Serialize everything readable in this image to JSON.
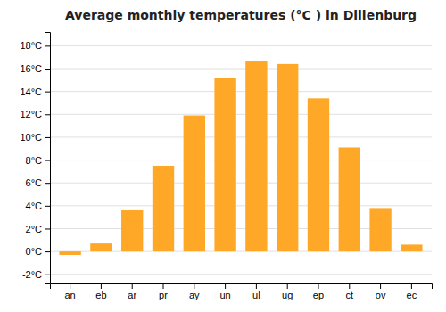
{
  "chart_data": {
    "type": "bar",
    "title": "Average monthly temperatures (°C ) in Dillenburg",
    "categories": [
      "an",
      "eb",
      "ar",
      "pr",
      "ay",
      "un",
      "ul",
      "ug",
      "ep",
      "ct",
      "ov",
      "ec"
    ],
    "values": [
      -0.3,
      0.7,
      3.6,
      7.5,
      11.9,
      15.2,
      16.7,
      16.4,
      13.4,
      9.1,
      3.8,
      0.6
    ],
    "color": "#FFA726",
    "ylim": [
      -2.8,
      19.2
    ],
    "yticks": [
      {
        "value": -2,
        "label": "-2°C"
      },
      {
        "value": 0,
        "label": "0°C"
      },
      {
        "value": 2,
        "label": "2°C"
      },
      {
        "value": 4,
        "label": "4°C"
      },
      {
        "value": 6,
        "label": "6°C"
      },
      {
        "value": 8,
        "label": "8°C"
      },
      {
        "value": 10,
        "label": "10°C"
      },
      {
        "value": 12,
        "label": "12°C"
      },
      {
        "value": 14,
        "label": "14°C"
      },
      {
        "value": 16,
        "label": "16°C"
      },
      {
        "value": 18,
        "label": "18°C"
      }
    ],
    "grid": true
  }
}
